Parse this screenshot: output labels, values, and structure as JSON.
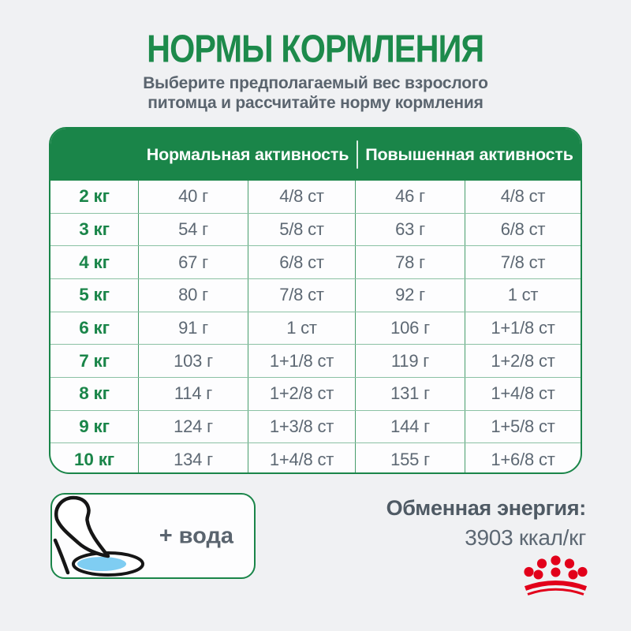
{
  "header": {
    "title": "НОРМЫ КОРМЛЕНИЯ",
    "subtitle_line1": "Выберите предполагаемый вес взрослого",
    "subtitle_line2": "питомца и рассчитайте норму кормления"
  },
  "chart_data": {
    "type": "table",
    "title": "НОРМЫ КОРМЛЕНИЯ",
    "column_groups": [
      "Нормальная активность",
      "Повышенная активность"
    ],
    "rows": [
      [
        "2 кг",
        "40 г",
        "4/8 ст",
        "46 г",
        "4/8 ст"
      ],
      [
        "3 кг",
        "54 г",
        "5/8 ст",
        "63 г",
        "6/8 ст"
      ],
      [
        "4 кг",
        "67 г",
        "6/8 ст",
        "78 г",
        "7/8 ст"
      ],
      [
        "5 кг",
        "80 г",
        "7/8 ст",
        "92 г",
        "1 ст"
      ],
      [
        "6 кг",
        "91 г",
        "1 ст",
        "106 г",
        "1+1/8 ст"
      ],
      [
        "7 кг",
        "103 г",
        "1+1/8 ст",
        "119 г",
        "1+2/8 ст"
      ],
      [
        "8 кг",
        "114 г",
        "1+2/8 ст",
        "131 г",
        "1+4/8 ст"
      ],
      [
        "9 кг",
        "124 г",
        "1+3/8 ст",
        "144 г",
        "1+5/8 ст"
      ],
      [
        "10 кг",
        "134 г",
        "1+4/8 ст",
        "155 г",
        "1+6/8 ст"
      ]
    ]
  },
  "footer": {
    "water_note": "+ вода",
    "energy_label": "Обменная энергия:",
    "energy_value": "3903 ккал/кг"
  },
  "icons": {
    "water_bowl": "drinking-pet-water-bowl-icon",
    "brand_crown": "royal-canin-crown-icon"
  },
  "colors": {
    "green": "#1a8549",
    "text_gray": "#5d6873",
    "brand_red": "#e2001a",
    "water_blue": "#7fcdf2",
    "background": "#f0f1f3"
  }
}
